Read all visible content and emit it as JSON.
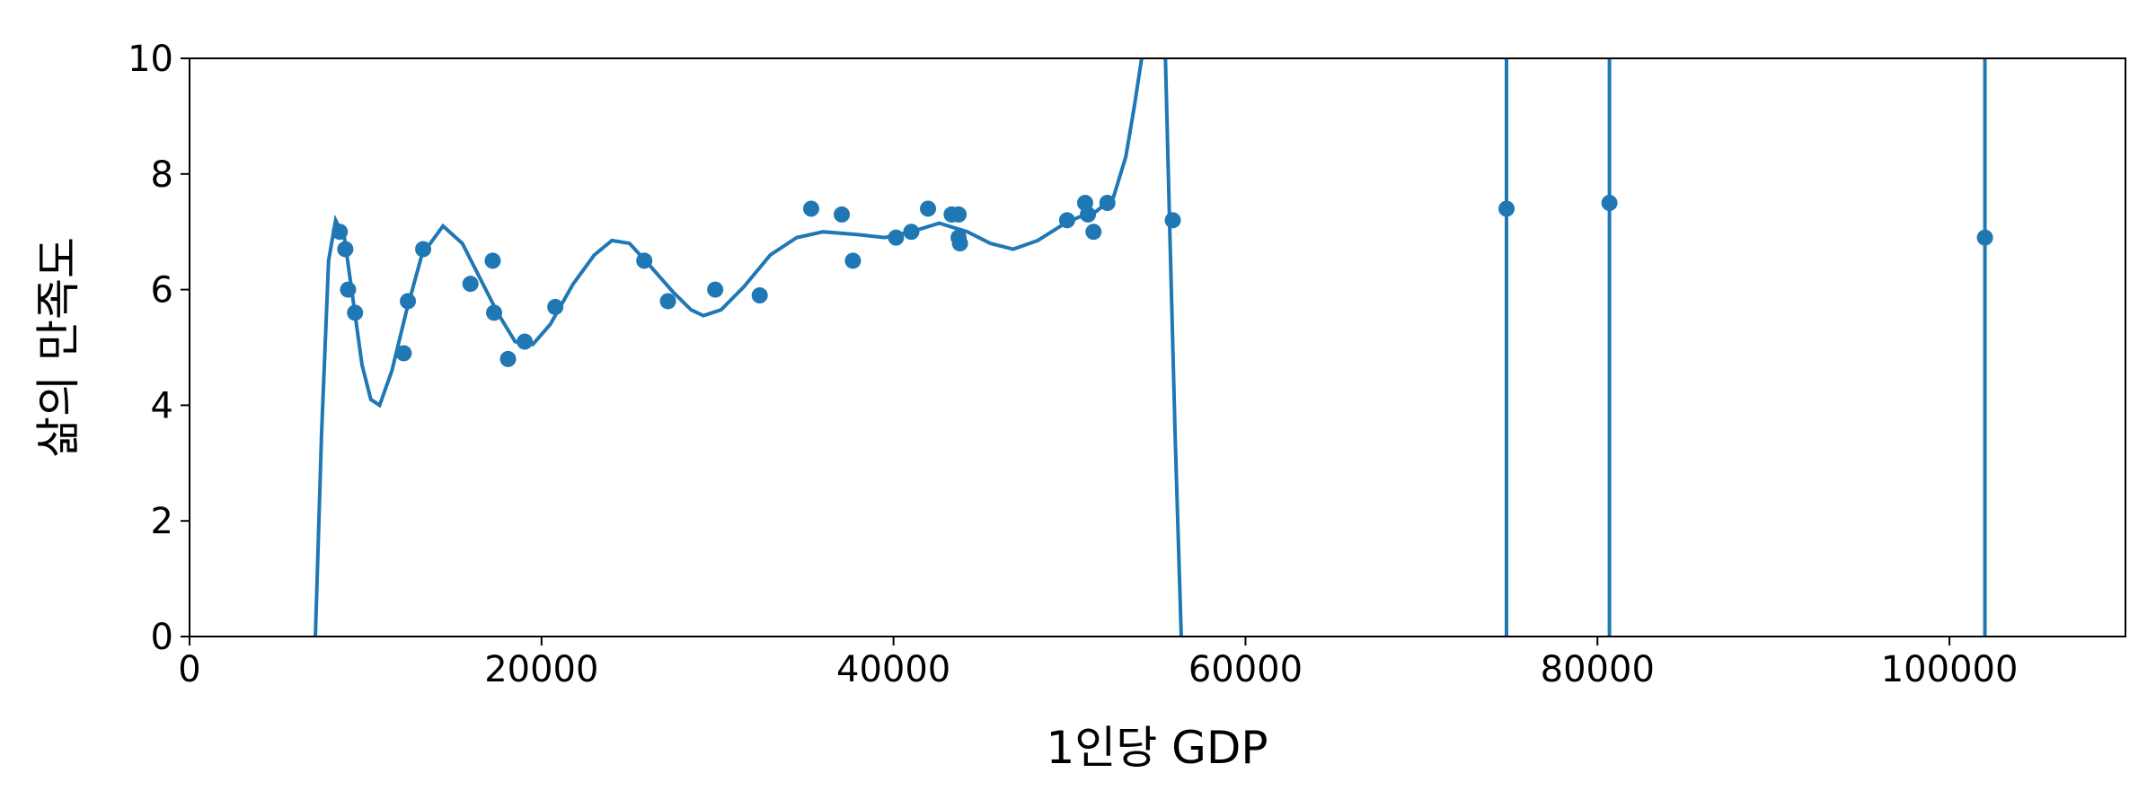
{
  "chart_data": {
    "type": "scatter",
    "xlabel": "1인당 GDP",
    "ylabel": "삶의 만족도",
    "xlim": [
      0,
      110000
    ],
    "ylim": [
      0,
      10
    ],
    "xticks": [
      0,
      20000,
      40000,
      60000,
      80000,
      100000
    ],
    "yticks": [
      0,
      2,
      4,
      6,
      8,
      10
    ],
    "series": [
      {
        "type": "line",
        "color": "#1f77b4",
        "x": [
          7150,
          7500,
          7900,
          8300,
          8800,
          9300,
          9800,
          10300,
          10800,
          11500,
          12300,
          13200,
          14400,
          15500,
          16500,
          17500,
          18500,
          19500,
          20500,
          21800,
          23000,
          24000,
          25000,
          26200,
          27500,
          28500,
          29200,
          30200,
          31500,
          33000,
          34500,
          36000,
          38000,
          39500,
          41000,
          42600,
          44200,
          45500,
          46800,
          48200,
          49500,
          50500,
          51500,
          52500,
          53200,
          53700,
          54100,
          54800,
          55450,
          55700,
          56000,
          56350,
          65000,
          74830,
          74830,
          77700,
          80680,
          80680,
          91000,
          102015,
          102015
        ],
        "values": [
          0,
          3.5,
          6.5,
          7.2,
          6.9,
          5.8,
          4.7,
          4.1,
          4.0,
          4.6,
          5.6,
          6.6,
          7.1,
          6.8,
          6.2,
          5.6,
          5.1,
          5.05,
          5.4,
          6.1,
          6.6,
          6.85,
          6.8,
          6.4,
          5.95,
          5.65,
          5.55,
          5.65,
          6.05,
          6.6,
          6.9,
          7.0,
          6.95,
          6.9,
          7.0,
          7.15,
          7.0,
          6.8,
          6.7,
          6.85,
          7.1,
          7.25,
          7.35,
          7.6,
          8.3,
          9.2,
          10,
          null,
          10,
          7,
          3.5,
          0,
          null,
          0,
          10,
          null,
          10,
          0,
          null,
          0,
          10
        ]
      },
      {
        "type": "scatter",
        "color": "#1f77b4",
        "x": [
          8534,
          8850,
          9008,
          9403,
          12169,
          12406,
          13275,
          15962,
          17226,
          17305,
          18096,
          19044,
          20783,
          25840,
          27183,
          29870,
          32398,
          35322,
          37060,
          37692,
          40142,
          41011,
          41960,
          43303,
          43698,
          43698,
          43777,
          49862,
          50889,
          51047,
          51363,
          52153,
          55867,
          74832,
          80680,
          102015
        ],
        "values": [
          7.0,
          6.7,
          6.0,
          5.6,
          4.9,
          5.8,
          6.7,
          6.1,
          6.5,
          5.6,
          4.8,
          5.1,
          5.7,
          6.5,
          5.8,
          6.0,
          5.9,
          7.4,
          7.3,
          6.5,
          6.9,
          7.0,
          7.4,
          7.3,
          7.3,
          6.9,
          6.8,
          7.2,
          7.5,
          7.3,
          7.0,
          7.5,
          7.2,
          7.4,
          7.5,
          6.9
        ]
      }
    ]
  }
}
